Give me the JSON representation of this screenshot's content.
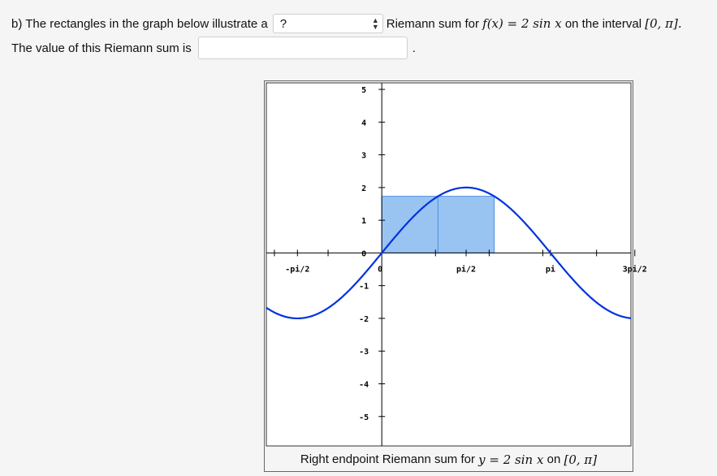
{
  "question": {
    "prefix": "b) The rectangles in the graph below illustrate a",
    "select_value": "?",
    "suffix": "Riemann sum for",
    "function_math": "f(x) = 2 sin x",
    "interval_label": "on the interval",
    "interval": "[0, π].",
    "value_label": "The value of this Riemann sum is",
    "value_input": "",
    "period": "."
  },
  "icons": {
    "select": "updown-arrows-icon"
  },
  "colors": {
    "curve": "#0033dd",
    "rect_fill": "#99c4f2",
    "rect_stroke": "#4f8ee6",
    "frame": "#333333"
  },
  "chart_data": {
    "type": "line",
    "function": "2*sin(x)",
    "xlim": [
      -2.15,
      4.64
    ],
    "ylim": [
      -5.9,
      5.2
    ],
    "x_ticks": [
      {
        "value": -1.5707963,
        "label": "-pi/2"
      },
      {
        "value": 0,
        "label": "0"
      },
      {
        "value": 1.5707963,
        "label": "pi/2"
      },
      {
        "value": 3.1415927,
        "label": "pi"
      },
      {
        "value": 4.712389,
        "label": "3pi/2"
      }
    ],
    "y_ticks": [
      {
        "value": 5,
        "label": "5"
      },
      {
        "value": 4,
        "label": "4"
      },
      {
        "value": 3,
        "label": "3"
      },
      {
        "value": 2,
        "label": "2"
      },
      {
        "value": 1,
        "label": "1"
      },
      {
        "value": 0,
        "label": "0"
      },
      {
        "value": -1,
        "label": "-1"
      },
      {
        "value": -2,
        "label": "-2"
      },
      {
        "value": -3,
        "label": "-3"
      },
      {
        "value": -4,
        "label": "-4"
      },
      {
        "value": -5,
        "label": "-5"
      }
    ],
    "rectangles": [
      {
        "x0": 0,
        "x1": 1.0471976,
        "height": 1.7320508
      },
      {
        "x0": 1.0471976,
        "x1": 2.0943951,
        "height": 1.7320508
      },
      {
        "x0": 2.0943951,
        "x1": 3.1415927,
        "height": 0
      }
    ],
    "caption": {
      "prefix": "Right endpoint Riemann sum for",
      "math": "y = 2 sin x",
      "mid": "on",
      "interval": "[0, π]"
    }
  }
}
